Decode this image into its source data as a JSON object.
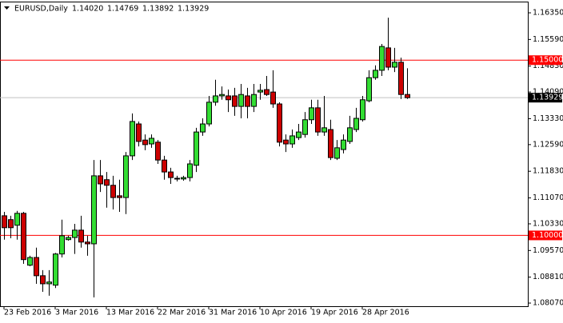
{
  "chart_data": {
    "type": "candlestick",
    "symbol": "EURUSD,Daily",
    "header_values": [
      "1.14020",
      "1.14769",
      "1.13892",
      "1.13929"
    ],
    "x": [
      "23 Feb 2016",
      null,
      null,
      null,
      null,
      null,
      null,
      null,
      "3 Mar 2016",
      null,
      null,
      null,
      null,
      null,
      null,
      null,
      "13 Mar 2016",
      null,
      null,
      null,
      null,
      null,
      null,
      null,
      "22 Mar 2016",
      null,
      null,
      null,
      null,
      null,
      null,
      null,
      "31 Mar 2016",
      null,
      null,
      null,
      null,
      null,
      null,
      null,
      "10 Apr 2016",
      null,
      null,
      null,
      null,
      null,
      null,
      null,
      "19 Apr 2016",
      null,
      null,
      null,
      null,
      null,
      null,
      null,
      "28 Apr 2016",
      null,
      null,
      null,
      null,
      null,
      null,
      null
    ],
    "open": [
      1.1056,
      1.1045,
      1.1029,
      1.1063,
      1.0915,
      1.0937,
      1.0885,
      1.0862,
      1.0858,
      1.0947,
      1.0988,
      1.0994,
      1.1015,
      1.0981,
      1.0976,
      1.117,
      1.1159,
      1.1143,
      1.1113,
      1.1108,
      1.1227,
      1.1318,
      1.1272,
      1.1261,
      1.1266,
      1.1215,
      1.1181,
      1.1163,
      1.1161,
      1.1165,
      1.12,
      1.1295,
      1.1318,
      1.138,
      1.1398,
      1.1398,
      1.1398,
      1.1368,
      1.1398,
      1.1368,
      1.1409,
      1.1416,
      1.1409,
      1.1375,
      1.1272,
      1.1261,
      1.1279,
      1.1288,
      1.133,
      1.1364,
      1.1295,
      1.1302,
      1.122,
      1.1245,
      1.1268,
      1.1302,
      1.133,
      1.1384,
      1.145,
      1.1471,
      1.1535,
      1.148,
      1.1494,
      1.1402
    ],
    "high": [
      1.1067,
      1.1056,
      1.107,
      1.1067,
      1.0942,
      1.0965,
      1.0901,
      1.0901,
      1.095,
      1.1045,
      1.0999,
      1.1033,
      1.1056,
      1.0999,
      1.1215,
      1.1215,
      1.1181,
      1.117,
      1.1159,
      1.1238,
      1.1348,
      1.1325,
      1.1288,
      1.1288,
      1.1272,
      1.1227,
      1.1193,
      1.117,
      1.117,
      1.1215,
      1.1307,
      1.1334,
      1.1398,
      1.1444,
      1.1425,
      1.1416,
      1.1421,
      1.1432,
      1.1421,
      1.1432,
      1.1432,
      1.1455,
      1.1471,
      1.138,
      1.1288,
      1.1302,
      1.1318,
      1.1352,
      1.1387,
      1.1387,
      1.1398,
      1.133,
      1.1272,
      1.1288,
      1.1341,
      1.1364,
      1.1398,
      1.1471,
      1.1485,
      1.1546,
      1.1621,
      1.1535,
      1.1507,
      1.14769
    ],
    "low": [
      1.0988,
      1.0992,
      1.0988,
      1.0919,
      1.0912,
      1.0862,
      1.0839,
      1.0828,
      1.085,
      1.0937,
      1.0985,
      1.0947,
      1.0965,
      1.0942,
      1.0823,
      1.1124,
      1.1079,
      1.1074,
      1.1067,
      1.1061,
      1.1215,
      1.1254,
      1.1243,
      1.125,
      1.1204,
      1.1159,
      1.1147,
      1.1154,
      1.1156,
      1.1154,
      1.1181,
      1.1284,
      1.1311,
      1.137,
      1.1387,
      1.1352,
      1.1341,
      1.1334,
      1.1334,
      1.1352,
      1.1387,
      1.1398,
      1.1364,
      1.1254,
      1.1238,
      1.125,
      1.1272,
      1.1279,
      1.1318,
      1.1284,
      1.1284,
      1.1215,
      1.1215,
      1.1234,
      1.1261,
      1.1295,
      1.1325,
      1.138,
      1.1444,
      1.1455,
      1.1471,
      1.1466,
      1.1389,
      1.13892
    ],
    "close": [
      1.1022,
      1.1022,
      1.1063,
      1.0931,
      1.0937,
      1.0885,
      1.0862,
      1.0867,
      1.0947,
      1.0999,
      1.0994,
      1.1015,
      1.0981,
      1.0976,
      1.117,
      1.1147,
      1.1143,
      1.1108,
      1.1108,
      1.1227,
      1.1325,
      1.1268,
      1.1259,
      1.1277,
      1.1215,
      1.1181,
      1.1165,
      1.1161,
      1.1165,
      1.1204,
      1.1295,
      1.1318,
      1.138,
      1.1398,
      1.1402,
      1.1387,
      1.1368,
      1.1402,
      1.1368,
      1.1402,
      1.1414,
      1.1402,
      1.1375,
      1.1266,
      1.1261,
      1.1284,
      1.1295,
      1.133,
      1.1364,
      1.1295,
      1.1307,
      1.1222,
      1.125,
      1.1272,
      1.1307,
      1.1334,
      1.1387,
      1.145,
      1.1471,
      1.1539,
      1.148,
      1.1494,
      1.1402,
      1.13929
    ],
    "up_color": "#33dd33",
    "down_color": "#cc0000",
    "ylim": [
      1.0798,
      1.1667
    ],
    "yticks": [
      {
        "value": 1.0807,
        "label": "1.08070"
      },
      {
        "value": 1.0881,
        "label": "1.08810"
      },
      {
        "value": 1.0957,
        "label": "1.09570"
      },
      {
        "value": 1.1033,
        "label": "1.10330"
      },
      {
        "value": 1.1107,
        "label": "1.11070"
      },
      {
        "value": 1.1183,
        "label": "1.11830"
      },
      {
        "value": 1.1259,
        "label": "1.12590"
      },
      {
        "value": 1.1333,
        "label": "1.13330"
      },
      {
        "value": 1.1409,
        "label": "1.14090"
      },
      {
        "value": 1.1483,
        "label": "1.14830"
      },
      {
        "value": 1.1559,
        "label": "1.15590"
      },
      {
        "value": 1.1635,
        "label": "1.16350"
      }
    ],
    "hlines": [
      {
        "value": 1.15,
        "label": "1.15000",
        "color": "#ff0000"
      },
      {
        "value": 1.1,
        "label": "1.10000",
        "color": "#ff0000"
      }
    ],
    "price_line": {
      "value": 1.13929,
      "color": "#c0c0c0"
    }
  }
}
